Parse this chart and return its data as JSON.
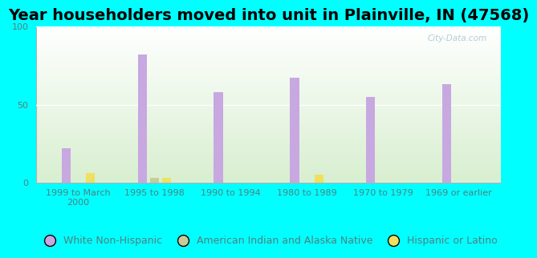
{
  "title": "Year householders moved into unit in Plainville, IN (47568)",
  "categories": [
    "1999 to March\n2000",
    "1995 to 1998",
    "1990 to 1994",
    "1980 to 1989",
    "1970 to 1979",
    "1969 or earlier"
  ],
  "white_non_hispanic": [
    22,
    82,
    58,
    67,
    55,
    63
  ],
  "american_indian": [
    0,
    3,
    0,
    0,
    0,
    0
  ],
  "hispanic": [
    6,
    3,
    0,
    5,
    0,
    0
  ],
  "white_color": "#c8a8e0",
  "american_indian_color": "#c8cc98",
  "hispanic_color": "#f0e060",
  "ylim": [
    0,
    100
  ],
  "yticks": [
    0,
    50,
    100
  ],
  "bg_color": "#00FFFF",
  "plot_bg_top": "#ffffff",
  "plot_bg_bottom": "#d8efd0",
  "watermark": "City-Data.com",
  "bar_width": 0.12,
  "bar_gap": 0.04,
  "title_fontsize": 14,
  "tick_fontsize": 8,
  "legend_fontsize": 9,
  "tick_color": "#508080"
}
